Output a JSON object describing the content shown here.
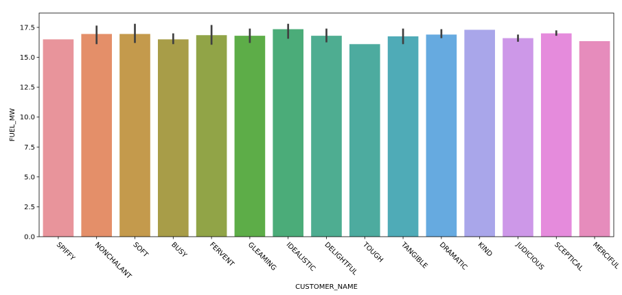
{
  "chart_data": {
    "type": "bar",
    "title": "",
    "xlabel": "CUSTOMER_NAME",
    "ylabel": "FUEL_MW",
    "ylim": [
      0,
      18.7
    ],
    "yticks": [
      "0.0",
      "2.5",
      "5.0",
      "7.5",
      "10.0",
      "12.5",
      "15.0",
      "17.5"
    ],
    "grid": false,
    "legend": "none",
    "categories": [
      "SPIFFY",
      "NONCHALANT",
      "SOFT",
      "BUSY",
      "FERVENT",
      "GLEAMING",
      "IDEALISTIC",
      "DELIGHTFUL",
      "TOUGH",
      "TANGIBLE",
      "DRAMATIC",
      "KIND",
      "JUDICIOUS",
      "SCEPTICAL",
      "MERCIFUL"
    ],
    "values": [
      16.5,
      16.95,
      16.95,
      16.5,
      16.85,
      16.8,
      17.35,
      16.8,
      16.1,
      16.75,
      16.9,
      17.3,
      16.6,
      17.0,
      16.35
    ],
    "error_low": [
      null,
      16.1,
      16.2,
      16.1,
      16.05,
      16.2,
      16.55,
      16.25,
      null,
      16.1,
      16.6,
      null,
      16.3,
      16.8,
      null
    ],
    "error_high": [
      null,
      17.65,
      17.8,
      17.0,
      17.7,
      17.4,
      17.8,
      17.4,
      null,
      17.4,
      17.35,
      null,
      16.9,
      17.25,
      null
    ],
    "colors": [
      "#e8949b",
      "#e48f69",
      "#c49a4c",
      "#a89d48",
      "#91a447",
      "#5dad48",
      "#4bac79",
      "#4ead91",
      "#4dab9f",
      "#4fabb7",
      "#66aae0",
      "#a9a6ea",
      "#cd98e8",
      "#e58bdc",
      "#e68cbc"
    ],
    "error_color": "#404040"
  }
}
